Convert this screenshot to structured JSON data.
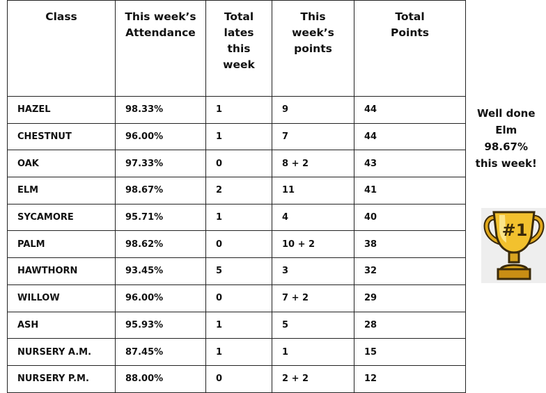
{
  "table": {
    "header": [
      "Class",
      "This week’s Attendance",
      "Total lates this week",
      "This week’s points",
      "Total Points"
    ],
    "rows": [
      [
        "HAZEL",
        "98.33%",
        "1",
        "9",
        "44"
      ],
      [
        "CHESTNUT",
        "96.00%",
        "1",
        "7",
        "44"
      ],
      [
        "OAK",
        "97.33%",
        "0",
        "8 + 2",
        "43"
      ],
      [
        "ELM",
        "98.67%",
        "2",
        "11",
        "41"
      ],
      [
        "SYCAMORE",
        "95.71%",
        "1",
        "4",
        "40"
      ],
      [
        "PALM",
        "98.62%",
        "0",
        "10 + 2",
        "38"
      ],
      [
        "HAWTHORN",
        "93.45%",
        "5",
        "3",
        "32"
      ],
      [
        "WILLOW",
        "96.00%",
        "0",
        "7 + 2",
        "29"
      ],
      [
        "ASH",
        "95.93%",
        "1",
        "5",
        "28"
      ],
      [
        "NURSERY A.M.",
        "87.45%",
        "1",
        "1",
        "15"
      ],
      [
        "NURSERY P.M.",
        "88.00%",
        "0",
        "2 + 2",
        "12"
      ]
    ]
  },
  "side": {
    "message": [
      "Well done",
      "Elm",
      "98.67%",
      "this week!"
    ]
  }
}
